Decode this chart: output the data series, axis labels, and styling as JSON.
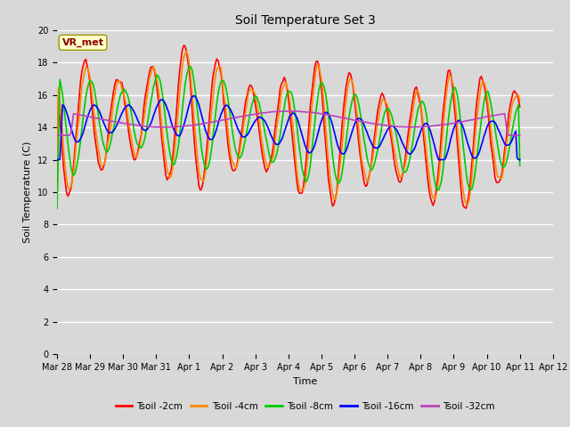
{
  "title": "Soil Temperature Set 3",
  "xlabel": "Time",
  "ylabel": "Soil Temperature (C)",
  "annotation": "VR_met",
  "ylim": [
    0,
    20
  ],
  "xlim": [
    0,
    336
  ],
  "plot_bg": "#d8d8d8",
  "fig_bg": "#d8d8d8",
  "grid_color": "#ffffff",
  "series": {
    "Tsoil -2cm": {
      "color": "#ff0000",
      "lw": 1.2
    },
    "Tsoil -4cm": {
      "color": "#ff8800",
      "lw": 1.2
    },
    "Tsoil -8cm": {
      "color": "#00cc00",
      "lw": 1.2
    },
    "Tsoil -16cm": {
      "color": "#0000ff",
      "lw": 1.2
    },
    "Tsoil -32cm": {
      "color": "#bb44bb",
      "lw": 1.2
    }
  },
  "xtick_labels": [
    "Mar 28",
    "Mar 29",
    "Mar 30",
    "Mar 31",
    "Apr 1",
    "Apr 2",
    "Apr 3",
    "Apr 4",
    "Apr 5",
    "Apr 6",
    "Apr 7",
    "Apr 8",
    "Apr 9",
    "Apr 10",
    "Apr 11",
    "Apr 12"
  ],
  "xtick_positions": [
    0,
    24,
    48,
    72,
    96,
    120,
    144,
    168,
    192,
    216,
    240,
    264,
    288,
    312,
    336,
    360
  ]
}
